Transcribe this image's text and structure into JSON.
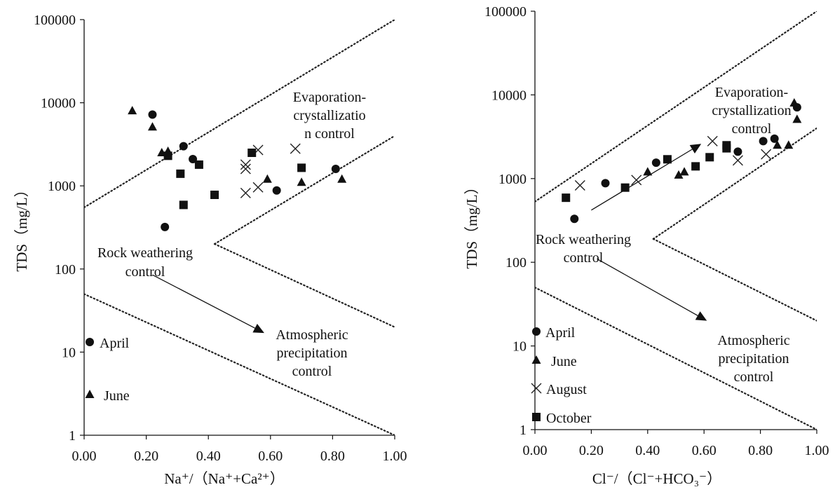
{
  "chart_data": [
    {
      "type": "scatter",
      "xlabel": "Na⁺/（Na⁺+Ca²⁺）",
      "ylabel": "TDS（mg/L）",
      "xlim": [
        0,
        1
      ],
      "ylim": [
        1,
        100000
      ],
      "yscale": "log",
      "xticks": [
        "0.00",
        "0.20",
        "0.40",
        "0.60",
        "0.80",
        "1.00"
      ],
      "yticks": [
        "1",
        "10",
        "100",
        "1000",
        "10000",
        "100000"
      ],
      "annotations": {
        "evap": [
          "Evaporation-",
          "crystallizatio",
          "n control"
        ],
        "rock": [
          "Rock weathering",
          "control"
        ],
        "atmo": [
          "Atmospheric",
          "precipitation",
          "control"
        ]
      },
      "boundaries": [
        {
          "style": "dotted",
          "points": [
            [
              0,
              550
            ],
            [
              1,
              100000
            ]
          ]
        },
        {
          "style": "dotted",
          "points": [
            [
              0.42,
              200
            ],
            [
              1,
              4000
            ]
          ]
        },
        {
          "style": "dotted",
          "points": [
            [
              0.42,
              200
            ],
            [
              1,
              20
            ]
          ]
        },
        {
          "style": "dotted",
          "points": [
            [
              0,
              50
            ],
            [
              1,
              1
            ]
          ]
        }
      ],
      "arrow": {
        "from": [
          0.22,
          85
        ],
        "to": [
          0.58,
          17
        ]
      },
      "legend": [
        {
          "label": "April",
          "marker": "circle"
        },
        {
          "label": "June",
          "marker": "triangle"
        }
      ],
      "series": [
        {
          "name": "April",
          "marker": "circle",
          "points": [
            [
              0.22,
              7200
            ],
            [
              0.32,
              3000
            ],
            [
              0.35,
              2100
            ],
            [
              0.26,
              320
            ],
            [
              0.62,
              880
            ],
            [
              0.81,
              1600
            ]
          ]
        },
        {
          "name": "June",
          "marker": "triangle",
          "points": [
            [
              0.155,
              8000
            ],
            [
              0.22,
              5100
            ],
            [
              0.25,
              2500
            ],
            [
              0.27,
              2600
            ],
            [
              0.59,
              1200
            ],
            [
              0.7,
              1100
            ],
            [
              0.83,
              1200
            ]
          ]
        },
        {
          "name": "August",
          "marker": "x",
          "points": [
            [
              0.52,
              1800
            ],
            [
              0.52,
              1600
            ],
            [
              0.56,
              2700
            ],
            [
              0.52,
              820
            ],
            [
              0.56,
              960
            ],
            [
              0.68,
              2800
            ]
          ]
        },
        {
          "name": "October",
          "marker": "square",
          "points": [
            [
              0.27,
              2300
            ],
            [
              0.31,
              1400
            ],
            [
              0.37,
              1800
            ],
            [
              0.42,
              780
            ],
            [
              0.32,
              590
            ],
            [
              0.54,
              2500
            ],
            [
              0.7,
              1650
            ]
          ]
        }
      ]
    },
    {
      "type": "scatter",
      "xlabel": "Cl⁻/（Cl⁻+HCO₃⁻）",
      "ylabel": "TDS（mg/L）",
      "xlim": [
        0,
        1
      ],
      "ylim": [
        1,
        100000
      ],
      "yscale": "log",
      "xticks": [
        "0.00",
        "0.20",
        "0.40",
        "0.60",
        "0.80",
        "1.00"
      ],
      "yticks": [
        "1",
        "10",
        "100",
        "1000",
        "10000",
        "100000"
      ],
      "annotations": {
        "evap": [
          "Evaporation-",
          "crystallization",
          "control"
        ],
        "rock": [
          "Rock weathering",
          "control"
        ],
        "atmo": [
          "Atmospheric",
          "precipitation",
          "control"
        ]
      },
      "boundaries": [
        {
          "style": "dotted",
          "points": [
            [
              0,
              530
            ],
            [
              1,
              100000
            ]
          ]
        },
        {
          "style": "dotted",
          "points": [
            [
              0,
              50
            ],
            [
              1,
              1
            ]
          ]
        },
        {
          "style": "dotted",
          "points": [
            [
              0.42,
              190
            ],
            [
              1,
              4000
            ]
          ]
        },
        {
          "style": "dotted",
          "points": [
            [
              0.42,
              190
            ],
            [
              1,
              20
            ]
          ]
        }
      ],
      "arrows": [
        {
          "from": [
            0.2,
            420
          ],
          "to": [
            0.59,
            2600
          ]
        },
        {
          "from": [
            0.22,
            110
          ],
          "to": [
            0.61,
            20
          ]
        }
      ],
      "legend": [
        {
          "label": "April",
          "marker": "circle"
        },
        {
          "label": "June",
          "marker": "triangle"
        },
        {
          "label": "August",
          "marker": "x"
        },
        {
          "label": "October",
          "marker": "square"
        }
      ],
      "series": [
        {
          "name": "April",
          "marker": "circle",
          "points": [
            [
              0.14,
              330
            ],
            [
              0.25,
              880
            ],
            [
              0.43,
              1550
            ],
            [
              0.72,
              2100
            ],
            [
              0.81,
              2800
            ],
            [
              0.85,
              3000
            ],
            [
              0.93,
              7100
            ]
          ]
        },
        {
          "name": "June",
          "marker": "triangle",
          "points": [
            [
              0.4,
              1200
            ],
            [
              0.51,
              1100
            ],
            [
              0.53,
              1200
            ],
            [
              0.86,
              2500
            ],
            [
              0.9,
              2500
            ],
            [
              0.92,
              8000
            ],
            [
              0.93,
              5100
            ]
          ]
        },
        {
          "name": "August",
          "marker": "x",
          "points": [
            [
              0.16,
              830
            ],
            [
              0.36,
              960
            ],
            [
              0.63,
              2800
            ],
            [
              0.72,
              1650
            ],
            [
              0.82,
              1950
            ]
          ]
        },
        {
          "name": "October",
          "marker": "square",
          "points": [
            [
              0.11,
              590
            ],
            [
              0.32,
              780
            ],
            [
              0.47,
              1700
            ],
            [
              0.57,
              1400
            ],
            [
              0.62,
              1800
            ],
            [
              0.68,
              2500
            ],
            [
              0.68,
              2300
            ]
          ]
        }
      ]
    }
  ]
}
